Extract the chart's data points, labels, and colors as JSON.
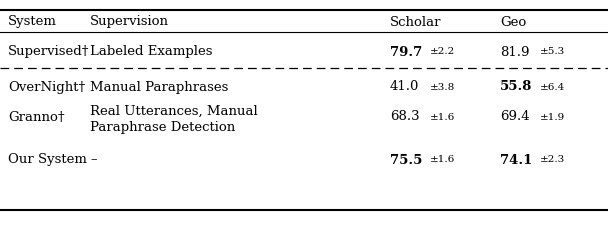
{
  "col_headers": [
    "System",
    "Supervision",
    "S CHOLAR",
    "G EO"
  ],
  "col_header_smallcaps": [
    false,
    false,
    true,
    true
  ],
  "col_header_display": [
    "System",
    "Supervision",
    "Scholar",
    "Geo"
  ],
  "rows": [
    {
      "system": "Supervised†",
      "system_smallcaps": false,
      "supervision": "Labeled Examples",
      "supervision_line2": "",
      "scholar": "79.7",
      "scholar_pm": "±2.2",
      "scholar_bold": true,
      "geo": "81.9",
      "geo_pm": "±5.3",
      "geo_bold": false,
      "dashed_below": true
    },
    {
      "system": "OverNight†",
      "system_smallcaps": true,
      "supervision": "Manual Paraphrases",
      "supervision_line2": "",
      "scholar": "41.0",
      "scholar_pm": "±3.8",
      "scholar_bold": false,
      "geo": "55.8",
      "geo_pm": "±6.4",
      "geo_bold": true,
      "dashed_below": false
    },
    {
      "system": "Granno†",
      "system_smallcaps": true,
      "supervision": "Real Utterances, Manual",
      "supervision_line2": "Paraphrase Detection",
      "scholar": "68.3",
      "scholar_pm": "±1.6",
      "scholar_bold": false,
      "geo": "69.4",
      "geo_pm": "±1.9",
      "geo_bold": false,
      "dashed_below": false
    },
    {
      "system": "Our System",
      "system_smallcaps": false,
      "supervision": "–",
      "supervision_line2": "",
      "scholar": "75.5",
      "scholar_pm": "±1.6",
      "scholar_bold": true,
      "geo": "74.1",
      "geo_pm": "±2.3",
      "geo_bold": true,
      "dashed_below": false
    }
  ],
  "bg_color": "#ffffff",
  "fontsize": 9.5,
  "pm_fontsize": 7.5
}
